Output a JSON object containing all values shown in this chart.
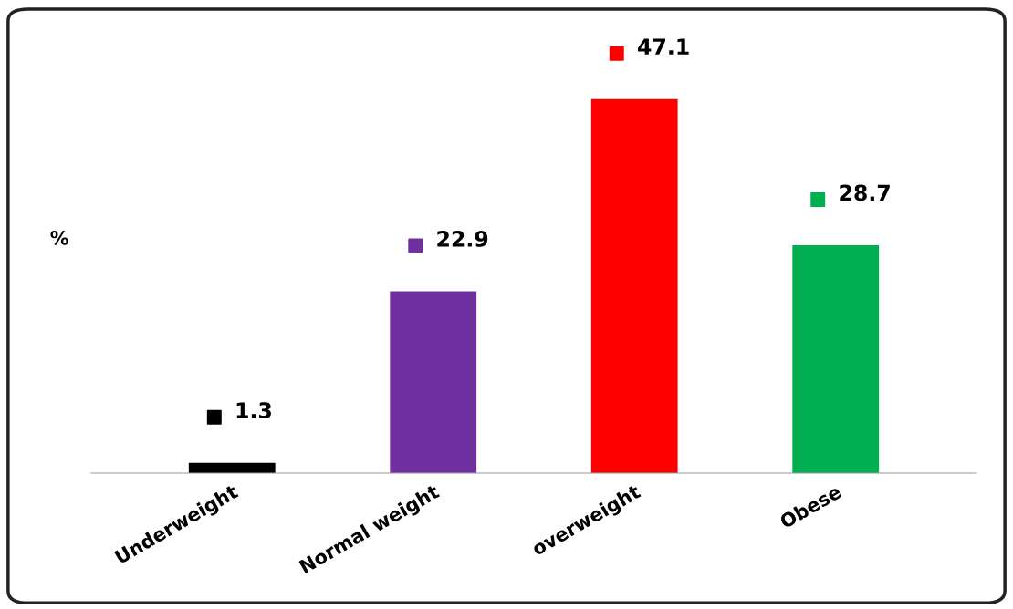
{
  "chart_data": {
    "type": "bar",
    "ylabel": "%",
    "categories": [
      "Underweight",
      "Normal weight",
      "overweight",
      "Obese"
    ],
    "values": [
      1.3,
      22.9,
      47.1,
      28.7
    ],
    "colors": [
      "#000000",
      "#7030a0",
      "#ff0000",
      "#00b050"
    ],
    "data_labels": true,
    "grid": false
  }
}
